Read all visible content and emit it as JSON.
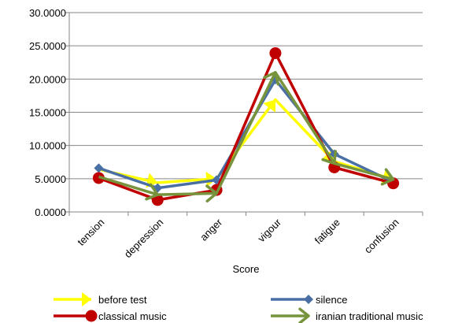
{
  "chart_data": {
    "type": "line",
    "title": "",
    "xlabel": "Score",
    "ylabel": "",
    "categories": [
      "tension",
      "depression",
      "anger",
      "vigour",
      "fatigue",
      "confusion"
    ],
    "ylim": [
      0,
      30
    ],
    "yticks": [
      0,
      5,
      10,
      15,
      20,
      25,
      30
    ],
    "ytick_labels": [
      "0.0000",
      "5.0000",
      "10.0000",
      "15.0000",
      "20.0000",
      "25.0000",
      "30.0000"
    ],
    "grid": "horizontal",
    "legend_position": "bottom",
    "series": [
      {
        "name": "before test",
        "color": "#FFFF00",
        "marker": "arrow",
        "values": [
          6.4,
          4.4,
          5.0,
          16.9,
          7.6,
          4.9
        ]
      },
      {
        "name": "silence",
        "color": "#4A6FA5",
        "marker": "diamond",
        "values": [
          6.6,
          3.6,
          4.8,
          19.9,
          8.7,
          4.5
        ]
      },
      {
        "name": "classical music",
        "color": "#C00000",
        "marker": "circle",
        "values": [
          5.1,
          1.8,
          3.3,
          23.9,
          6.7,
          4.3
        ]
      },
      {
        "name": "iranian traditional music",
        "color": "#77933C",
        "marker": "arrow",
        "values": [
          5.3,
          2.6,
          2.8,
          21.0,
          7.3,
          4.9
        ]
      }
    ]
  }
}
